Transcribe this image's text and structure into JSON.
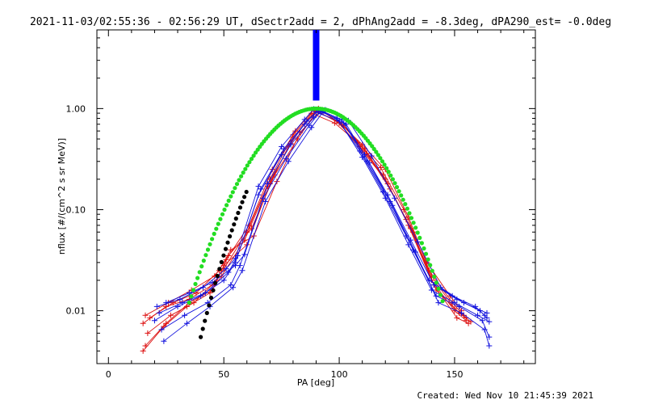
{
  "chart_data": {
    "type": "line",
    "title": "2021-11-03/02:55:36 - 02:56:29 UT, dSectr2add = 2, dPhAng2add = -8.3deg, dPA290_est= -0.0deg",
    "xlabel": "PA [deg]",
    "ylabel": "nflux [#/(cm^2 s sr MeV)]",
    "xlim": [
      -5,
      185
    ],
    "ylim": [
      0.003,
      6.0
    ],
    "yscale": "log",
    "x_ticks": [
      0,
      50,
      100,
      150
    ],
    "y_ticks": [
      0.01,
      0.1,
      1.0
    ],
    "x_tick_labels": [
      "0",
      "50",
      "100",
      "150"
    ],
    "y_tick_labels": [
      "0.01",
      "0.10",
      "1.00"
    ],
    "grid": false,
    "colors": {
      "red_series": "#dd1111",
      "blue_series": "#1111dd",
      "green_fit": "#22dd22",
      "black_fit": "#000000",
      "marker_bar": "#0000ff"
    },
    "marker_bar": {
      "x": 90,
      "y_from": 1.2,
      "y_to": 6.0
    },
    "series": [
      {
        "color": "red",
        "points": [
          [
            15,
            0.0075
          ],
          [
            25,
            0.011
          ],
          [
            35,
            0.013
          ],
          [
            45,
            0.018
          ],
          [
            50,
            0.026
          ],
          [
            60,
            0.06
          ],
          [
            70,
            0.2
          ],
          [
            80,
            0.55
          ],
          [
            90,
            0.95
          ],
          [
            100,
            0.72
          ],
          [
            110,
            0.38
          ],
          [
            120,
            0.2
          ],
          [
            130,
            0.07
          ],
          [
            140,
            0.02
          ],
          [
            150,
            0.01
          ],
          [
            155,
            0.008
          ]
        ]
      },
      {
        "color": "red",
        "points": [
          [
            16,
            0.009
          ],
          [
            26,
            0.012
          ],
          [
            36,
            0.016
          ],
          [
            46,
            0.022
          ],
          [
            51,
            0.032
          ],
          [
            61,
            0.07
          ],
          [
            71,
            0.25
          ],
          [
            81,
            0.6
          ],
          [
            89,
            0.97
          ],
          [
            99,
            0.75
          ],
          [
            109,
            0.42
          ],
          [
            119,
            0.22
          ],
          [
            129,
            0.08
          ],
          [
            139,
            0.025
          ],
          [
            149,
            0.012
          ],
          [
            154,
            0.009
          ]
        ]
      },
      {
        "color": "red",
        "points": [
          [
            17,
            0.006
          ],
          [
            27,
            0.009
          ],
          [
            37,
            0.012
          ],
          [
            47,
            0.02
          ],
          [
            52,
            0.035
          ],
          [
            62,
            0.065
          ],
          [
            72,
            0.22
          ],
          [
            82,
            0.5
          ],
          [
            91,
            1.0
          ],
          [
            101,
            0.7
          ],
          [
            111,
            0.4
          ],
          [
            121,
            0.18
          ],
          [
            131,
            0.065
          ],
          [
            141,
            0.018
          ],
          [
            151,
            0.0085
          ],
          [
            156,
            0.0075
          ]
        ]
      },
      {
        "color": "red",
        "points": [
          [
            15,
            0.004
          ],
          [
            24,
            0.007
          ],
          [
            34,
            0.011
          ],
          [
            44,
            0.015
          ],
          [
            49,
            0.022
          ],
          [
            59,
            0.05
          ],
          [
            69,
            0.17
          ],
          [
            79,
            0.45
          ],
          [
            88,
            0.9
          ],
          [
            98,
            0.72
          ],
          [
            108,
            0.46
          ],
          [
            118,
            0.26
          ],
          [
            128,
            0.1
          ],
          [
            138,
            0.03
          ],
          [
            148,
            0.014
          ],
          [
            153,
            0.01
          ]
        ]
      },
      {
        "color": "red",
        "points": [
          [
            18,
            0.0085
          ],
          [
            28,
            0.012
          ],
          [
            38,
            0.015
          ],
          [
            48,
            0.025
          ],
          [
            53,
            0.04
          ],
          [
            63,
            0.055
          ],
          [
            73,
            0.19
          ],
          [
            83,
            0.58
          ],
          [
            92,
            0.96
          ],
          [
            102,
            0.68
          ],
          [
            112,
            0.36
          ],
          [
            122,
            0.16
          ],
          [
            132,
            0.06
          ],
          [
            142,
            0.016
          ],
          [
            152,
            0.0095
          ],
          [
            157,
            0.0078
          ]
        ]
      },
      {
        "color": "red",
        "points": [
          [
            16,
            0.0045
          ],
          [
            25,
            0.0075
          ],
          [
            35,
            0.012
          ],
          [
            45,
            0.016
          ],
          [
            50,
            0.028
          ],
          [
            60,
            0.045
          ],
          [
            70,
            0.18
          ],
          [
            80,
            0.52
          ],
          [
            90,
            0.94
          ],
          [
            100,
            0.73
          ],
          [
            110,
            0.44
          ],
          [
            120,
            0.25
          ],
          [
            130,
            0.085
          ],
          [
            140,
            0.022
          ],
          [
            150,
            0.0105
          ],
          [
            155,
            0.0085
          ]
        ]
      },
      {
        "color": "blue",
        "points": [
          [
            20,
            0.008
          ],
          [
            30,
            0.011
          ],
          [
            40,
            0.014
          ],
          [
            50,
            0.02
          ],
          [
            55,
            0.03
          ],
          [
            65,
            0.14
          ],
          [
            75,
            0.35
          ],
          [
            85,
            0.7
          ],
          [
            90,
            0.92
          ],
          [
            100,
            0.75
          ],
          [
            110,
            0.33
          ],
          [
            120,
            0.13
          ],
          [
            130,
            0.045
          ],
          [
            140,
            0.016
          ],
          [
            150,
            0.012
          ],
          [
            160,
            0.009
          ],
          [
            165,
            0.0078
          ]
        ]
      },
      {
        "color": "blue",
        "points": [
          [
            22,
            0.0095
          ],
          [
            32,
            0.012
          ],
          [
            42,
            0.015
          ],
          [
            52,
            0.024
          ],
          [
            56,
            0.035
          ],
          [
            66,
            0.16
          ],
          [
            76,
            0.4
          ],
          [
            86,
            0.75
          ],
          [
            91,
            0.98
          ],
          [
            101,
            0.78
          ],
          [
            111,
            0.35
          ],
          [
            121,
            0.14
          ],
          [
            131,
            0.05
          ],
          [
            141,
            0.018
          ],
          [
            151,
            0.013
          ],
          [
            161,
            0.01
          ],
          [
            164,
            0.0085
          ]
        ]
      },
      {
        "color": "blue",
        "points": [
          [
            23,
            0.0065
          ],
          [
            33,
            0.009
          ],
          [
            43,
            0.012
          ],
          [
            53,
            0.018
          ],
          [
            57,
            0.028
          ],
          [
            67,
            0.13
          ],
          [
            77,
            0.32
          ],
          [
            87,
            0.68
          ],
          [
            92,
            0.95
          ],
          [
            102,
            0.72
          ],
          [
            112,
            0.3
          ],
          [
            122,
            0.12
          ],
          [
            132,
            0.04
          ],
          [
            142,
            0.014
          ],
          [
            152,
            0.011
          ],
          [
            162,
            0.008
          ],
          [
            165,
            0.0055
          ]
        ]
      },
      {
        "color": "blue",
        "points": [
          [
            21,
            0.011
          ],
          [
            31,
            0.013
          ],
          [
            41,
            0.017
          ],
          [
            51,
            0.026
          ],
          [
            55,
            0.033
          ],
          [
            65,
            0.17
          ],
          [
            75,
            0.42
          ],
          [
            85,
            0.78
          ],
          [
            89,
            0.99
          ],
          [
            99,
            0.8
          ],
          [
            109,
            0.38
          ],
          [
            119,
            0.15
          ],
          [
            129,
            0.055
          ],
          [
            139,
            0.02
          ],
          [
            149,
            0.014
          ],
          [
            159,
            0.011
          ],
          [
            163,
            0.009
          ]
        ]
      },
      {
        "color": "blue",
        "points": [
          [
            24,
            0.005
          ],
          [
            34,
            0.0075
          ],
          [
            44,
            0.011
          ],
          [
            54,
            0.017
          ],
          [
            58,
            0.025
          ],
          [
            68,
            0.12
          ],
          [
            78,
            0.3
          ],
          [
            88,
            0.65
          ],
          [
            93,
            0.93
          ],
          [
            103,
            0.7
          ],
          [
            113,
            0.29
          ],
          [
            123,
            0.11
          ],
          [
            133,
            0.038
          ],
          [
            143,
            0.012
          ],
          [
            153,
            0.0095
          ],
          [
            163,
            0.0065
          ],
          [
            165,
            0.0045
          ]
        ]
      },
      {
        "color": "blue",
        "points": [
          [
            25,
            0.012
          ],
          [
            35,
            0.015
          ],
          [
            45,
            0.019
          ],
          [
            55,
            0.028
          ],
          [
            59,
            0.036
          ],
          [
            69,
            0.18
          ],
          [
            79,
            0.44
          ],
          [
            89,
            0.82
          ],
          [
            94,
            0.97
          ],
          [
            104,
            0.76
          ],
          [
            114,
            0.34
          ],
          [
            124,
            0.13
          ],
          [
            134,
            0.048
          ],
          [
            144,
            0.017
          ],
          [
            154,
            0.012
          ],
          [
            164,
            0.0095
          ]
        ]
      }
    ],
    "fits": [
      {
        "color": "green",
        "x_from": 35,
        "x_to": 145,
        "peak_x": 90,
        "peak_y": 1.0
      },
      {
        "color": "black",
        "x_from": 40,
        "x_to": 60,
        "peak_x": 90,
        "peak_y": 1.0
      }
    ]
  },
  "footer": {
    "created": "Created: Wed Nov 10 21:45:39 2021"
  }
}
